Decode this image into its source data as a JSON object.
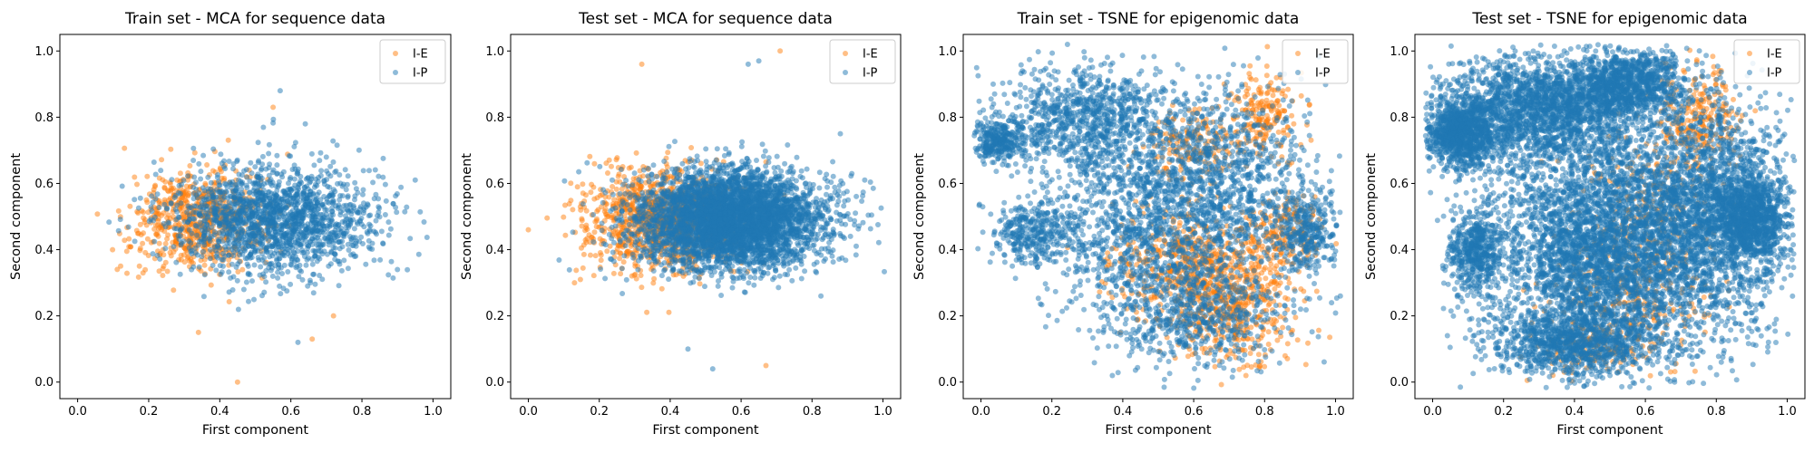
{
  "chart_data": [
    {
      "type": "scatter",
      "title": "Train set - MCA for sequence data",
      "xlabel": "First component",
      "ylabel": "Second component",
      "xlim": [
        -0.05,
        1.05
      ],
      "ylim": [
        -0.05,
        1.05
      ],
      "xticks": [
        "0.0",
        "0.2",
        "0.4",
        "0.6",
        "0.8",
        "1.0"
      ],
      "yticks": [
        "0.0",
        "0.2",
        "0.4",
        "0.6",
        "0.8",
        "1.0"
      ],
      "legend_position": "top-right",
      "series": [
        {
          "name": "I-E",
          "color": "#ff7f0e",
          "n": 700,
          "model": {
            "cx": 0.34,
            "cy": 0.49,
            "sx": 0.09,
            "sy": 0.075
          },
          "extra": [
            [
              0.45,
              0.0
            ],
            [
              0.34,
              0.15
            ],
            [
              0.55,
              0.83
            ],
            [
              0.66,
              0.13
            ],
            [
              0.72,
              0.2
            ]
          ]
        },
        {
          "name": "I-P",
          "color": "#1f77b4",
          "n": 1700,
          "model": {
            "cx": 0.55,
            "cy": 0.49,
            "sx": 0.14,
            "sy": 0.08
          },
          "extra": [
            [
              0.57,
              0.88
            ],
            [
              0.62,
              0.12
            ],
            [
              0.95,
              0.61
            ],
            [
              0.9,
              0.34
            ]
          ]
        }
      ]
    },
    {
      "type": "scatter",
      "title": "Test set - MCA for sequence data",
      "xlabel": "First component",
      "ylabel": "Second component",
      "xlim": [
        -0.05,
        1.05
      ],
      "ylim": [
        -0.05,
        1.05
      ],
      "xticks": [
        "0.0",
        "0.2",
        "0.4",
        "0.6",
        "0.8",
        "1.0"
      ],
      "yticks": [
        "0.0",
        "0.2",
        "0.4",
        "0.6",
        "0.8",
        "1.0"
      ],
      "legend_position": "top-right",
      "series": [
        {
          "name": "I-E",
          "color": "#ff7f0e",
          "n": 1100,
          "model": {
            "cx": 0.38,
            "cy": 0.49,
            "sx": 0.11,
            "sy": 0.08
          },
          "extra": [
            [
              0.0,
              0.46
            ],
            [
              0.71,
              1.0
            ],
            [
              0.32,
              0.96
            ],
            [
              0.67,
              0.05
            ],
            [
              0.13,
              0.3
            ]
          ]
        },
        {
          "name": "I-P",
          "color": "#1f77b4",
          "n": 4200,
          "model": {
            "cx": 0.57,
            "cy": 0.49,
            "sx": 0.13,
            "sy": 0.075
          },
          "extra": [
            [
              0.62,
              0.96
            ],
            [
              0.65,
              0.97
            ],
            [
              0.45,
              0.1
            ],
            [
              0.52,
              0.04
            ],
            [
              0.88,
              0.75
            ]
          ]
        }
      ]
    },
    {
      "type": "scatter",
      "title": "Train set - TSNE for epigenomic data",
      "xlabel": "First component",
      "ylabel": "Second component",
      "xlim": [
        -0.05,
        1.05
      ],
      "ylim": [
        -0.05,
        1.05
      ],
      "xticks": [
        "0.0",
        "0.2",
        "0.4",
        "0.6",
        "0.8",
        "1.0"
      ],
      "yticks": [
        "0.0",
        "0.2",
        "0.4",
        "0.6",
        "0.8",
        "1.0"
      ],
      "legend_position": "top-right",
      "series": [
        {
          "name": "I-E",
          "color": "#ff7f0e",
          "n": 1500,
          "clusters": [
            {
              "cx": 0.7,
              "cy": 0.25,
              "sx": 0.09,
              "sy": 0.1,
              "w": 3
            },
            {
              "cx": 0.55,
              "cy": 0.35,
              "sx": 0.1,
              "sy": 0.08,
              "w": 2
            },
            {
              "cx": 0.8,
              "cy": 0.8,
              "sx": 0.05,
              "sy": 0.07,
              "w": 1
            },
            {
              "cx": 0.6,
              "cy": 0.72,
              "sx": 0.07,
              "sy": 0.06,
              "w": 1
            },
            {
              "cx": 0.85,
              "cy": 0.45,
              "sx": 0.05,
              "sy": 0.06,
              "w": 1
            }
          ]
        },
        {
          "name": "I-P",
          "color": "#1f77b4",
          "n": 4500,
          "clusters": [
            {
              "cx": 0.3,
              "cy": 0.8,
              "sx": 0.13,
              "sy": 0.08,
              "w": 3
            },
            {
              "cx": 0.45,
              "cy": 0.5,
              "sx": 0.15,
              "sy": 0.15,
              "w": 4
            },
            {
              "cx": 0.7,
              "cy": 0.6,
              "sx": 0.12,
              "sy": 0.15,
              "w": 3
            },
            {
              "cx": 0.6,
              "cy": 0.2,
              "sx": 0.13,
              "sy": 0.08,
              "w": 2
            },
            {
              "cx": 0.15,
              "cy": 0.45,
              "sx": 0.06,
              "sy": 0.05,
              "w": 1
            },
            {
              "cx": 0.92,
              "cy": 0.45,
              "sx": 0.04,
              "sy": 0.06,
              "w": 1
            },
            {
              "cx": 0.05,
              "cy": 0.73,
              "sx": 0.04,
              "sy": 0.03,
              "w": 1
            }
          ]
        }
      ]
    },
    {
      "type": "scatter",
      "title": "Test set - TSNE for epigenomic data",
      "xlabel": "First component",
      "ylabel": "Second component",
      "xlim": [
        -0.05,
        1.05
      ],
      "ylim": [
        -0.05,
        1.05
      ],
      "xticks": [
        "0.0",
        "0.2",
        "0.4",
        "0.6",
        "0.8",
        "1.0"
      ],
      "yticks": [
        "0.0",
        "0.2",
        "0.4",
        "0.6",
        "0.8",
        "1.0"
      ],
      "legend_position": "top-right",
      "series": [
        {
          "name": "I-E",
          "color": "#ff7f0e",
          "n": 900,
          "clusters": [
            {
              "cx": 0.75,
              "cy": 0.8,
              "sx": 0.06,
              "sy": 0.08,
              "w": 2
            },
            {
              "cx": 0.6,
              "cy": 0.5,
              "sx": 0.1,
              "sy": 0.12,
              "w": 2
            },
            {
              "cx": 0.55,
              "cy": 0.25,
              "sx": 0.1,
              "sy": 0.1,
              "w": 2
            },
            {
              "cx": 0.45,
              "cy": 0.1,
              "sx": 0.08,
              "sy": 0.04,
              "w": 1
            }
          ]
        },
        {
          "name": "I-P",
          "color": "#1f77b4",
          "n": 12000,
          "clusters": [
            {
              "cx": 0.3,
              "cy": 0.82,
              "sx": 0.14,
              "sy": 0.08,
              "w": 4
            },
            {
              "cx": 0.08,
              "cy": 0.75,
              "sx": 0.05,
              "sy": 0.05,
              "w": 2
            },
            {
              "cx": 0.45,
              "cy": 0.4,
              "sx": 0.14,
              "sy": 0.16,
              "w": 6
            },
            {
              "cx": 0.75,
              "cy": 0.5,
              "sx": 0.13,
              "sy": 0.18,
              "w": 5
            },
            {
              "cx": 0.4,
              "cy": 0.12,
              "sx": 0.12,
              "sy": 0.05,
              "w": 2
            },
            {
              "cx": 0.9,
              "cy": 0.5,
              "sx": 0.05,
              "sy": 0.07,
              "w": 2
            },
            {
              "cx": 0.55,
              "cy": 0.9,
              "sx": 0.08,
              "sy": 0.05,
              "w": 2
            },
            {
              "cx": 0.12,
              "cy": 0.4,
              "sx": 0.04,
              "sy": 0.06,
              "w": 1
            }
          ]
        }
      ]
    }
  ]
}
